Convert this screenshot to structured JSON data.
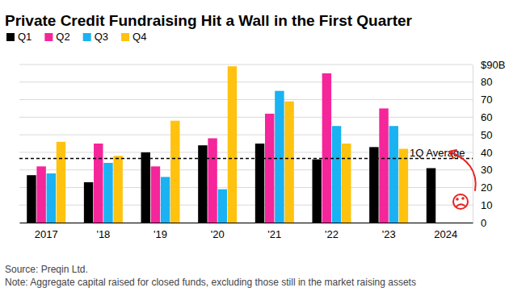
{
  "chart_data": {
    "type": "bar",
    "title": "Private Credit Fundraising Hit a Wall in the First Quarter",
    "categories": [
      "2017",
      "'18",
      "'19",
      "'20",
      "'21",
      "'22",
      "'23",
      "2024"
    ],
    "series": [
      {
        "name": "Q1",
        "color": "#000000",
        "values": [
          27,
          23,
          40,
          44,
          45,
          36,
          43,
          31
        ]
      },
      {
        "name": "Q2",
        "color": "#f5259a",
        "values": [
          32,
          45,
          32,
          48,
          62,
          85,
          65,
          null
        ]
      },
      {
        "name": "Q3",
        "color": "#1ab2f2",
        "values": [
          28,
          34,
          26,
          19,
          75,
          55,
          55,
          null
        ]
      },
      {
        "name": "Q4",
        "color": "#ffc20f",
        "values": [
          46,
          38,
          58,
          89,
          69,
          45,
          42,
          null
        ]
      }
    ],
    "ylim": [
      0,
      90
    ],
    "yticks": [
      0,
      10,
      20,
      30,
      40,
      50,
      60,
      70,
      80,
      {
        "value": 90,
        "label": "$90B"
      }
    ],
    "grid": true,
    "legend": "top-left",
    "average_line": {
      "value": 36.5,
      "label": "1Q Average"
    },
    "source": "Source: Preqin Ltd.",
    "note": "Note: Aggregate capital raised for closed funds, excluding those still in the market raising assets"
  }
}
